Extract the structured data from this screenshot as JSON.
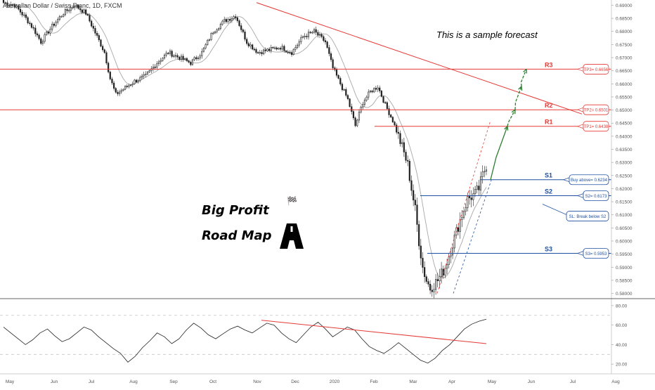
{
  "symbol_title": "Australian Dollar / Swiss Franc, 1D, FXCM",
  "headline": "This is a sample forecast",
  "brand": {
    "line1": "Big Profit",
    "line2": "Road Map"
  },
  "colors": {
    "up": "#26a69a",
    "down": "#ef5350",
    "candle": "#222222",
    "resistance": "#e53935",
    "support": "#1e4fa0",
    "forecast": "#2e7d32",
    "ma": "#a8a8a8",
    "rsi": "#222222",
    "axis": "#555555"
  },
  "chart_data": {
    "type": "candlestick",
    "ylim": [
      0.578,
      0.692
    ],
    "yticks": [
      "0.69000",
      "0.68500",
      "0.68000",
      "0.67500",
      "0.67000",
      "0.66500",
      "0.66000",
      "0.65500",
      "0.65000",
      "0.64500",
      "0.64000",
      "0.63500",
      "0.63000",
      "0.62500",
      "0.62000",
      "0.61500",
      "0.61000",
      "0.60500",
      "0.60000",
      "0.59500",
      "0.59000",
      "0.58500",
      "0.58000"
    ],
    "xticks": [
      "May",
      "Jun",
      "Jul",
      "Aug",
      "Sep",
      "Oct",
      "Nov",
      "Dec",
      "2020",
      "Feb",
      "Mar",
      "Apr",
      "May",
      "Jun",
      "Jul",
      "Aug"
    ],
    "price_path": [
      [
        0,
        0.691
      ],
      [
        6,
        0.69
      ],
      [
        12,
        0.685
      ],
      [
        16,
        0.681
      ],
      [
        20,
        0.676
      ],
      [
        26,
        0.682
      ],
      [
        32,
        0.687
      ],
      [
        38,
        0.69
      ],
      [
        44,
        0.687
      ],
      [
        50,
        0.678
      ],
      [
        54,
        0.672
      ],
      [
        57,
        0.662
      ],
      [
        60,
        0.656
      ],
      [
        64,
        0.658
      ],
      [
        70,
        0.661
      ],
      [
        76,
        0.663
      ],
      [
        82,
        0.668
      ],
      [
        88,
        0.672
      ],
      [
        94,
        0.67
      ],
      [
        100,
        0.668
      ],
      [
        106,
        0.672
      ],
      [
        112,
        0.68
      ],
      [
        118,
        0.684
      ],
      [
        124,
        0.686
      ],
      [
        130,
        0.676
      ],
      [
        136,
        0.672
      ],
      [
        142,
        0.673
      ],
      [
        148,
        0.674
      ],
      [
        154,
        0.672
      ],
      [
        160,
        0.678
      ],
      [
        166,
        0.68
      ],
      [
        172,
        0.676
      ],
      [
        176,
        0.666
      ],
      [
        180,
        0.66
      ],
      [
        184,
        0.654
      ],
      [
        188,
        0.644
      ],
      [
        192,
        0.653
      ],
      [
        196,
        0.657
      ],
      [
        200,
        0.659
      ],
      [
        204,
        0.652
      ],
      [
        208,
        0.646
      ],
      [
        212,
        0.638
      ],
      [
        216,
        0.629
      ],
      [
        218,
        0.62
      ],
      [
        220,
        0.612
      ],
      [
        222,
        0.6
      ],
      [
        224,
        0.59
      ],
      [
        226,
        0.585
      ],
      [
        228,
        0.582
      ],
      [
        232,
        0.585
      ],
      [
        236,
        0.59
      ],
      [
        240,
        0.599
      ],
      [
        244,
        0.608
      ],
      [
        248,
        0.616
      ],
      [
        252,
        0.618
      ],
      [
        254,
        0.62
      ],
      [
        256,
        0.625
      ],
      [
        258,
        0.629
      ]
    ],
    "levels": [
      {
        "name": "R3",
        "price": 0.6656,
        "label": "TP3= 0.6656"
      },
      {
        "name": "R2",
        "price": 0.6501,
        "label": "TP2= 0.6501"
      },
      {
        "name": "R1",
        "price": 0.6438,
        "label": "TP1= 0.6438"
      },
      {
        "name": "S1",
        "price": 0.6234,
        "label": "Buy above= 0.6234"
      },
      {
        "name": "S2",
        "price": 0.6173,
        "label": "S2= 0.6173"
      },
      {
        "name": "S3",
        "price": 0.5953,
        "label": "S3= 0.5953"
      }
    ],
    "sl_note": "SL: Break below S2",
    "trendline": {
      "from": [
        0.691,
        0
      ],
      "to": [
        0.65,
        268
      ]
    },
    "forecast_path": [
      0.6234,
      0.6438,
      0.6501,
      0.659,
      0.6656
    ],
    "rsi": {
      "ylim": [
        10,
        85
      ],
      "yticks": [
        "80.00",
        "60.00",
        "40.00",
        "20.00"
      ],
      "levels": [
        70,
        30
      ],
      "values": [
        58,
        52,
        46,
        40,
        45,
        52,
        56,
        49,
        43,
        46,
        52,
        58,
        55,
        48,
        42,
        36,
        31,
        22,
        28,
        37,
        44,
        52,
        48,
        41,
        46,
        55,
        62,
        57,
        50,
        46,
        51,
        56,
        59,
        55,
        52,
        57,
        62,
        60,
        52,
        46,
        42,
        50,
        58,
        63,
        56,
        48,
        53,
        58,
        55,
        46,
        38,
        34,
        31,
        36,
        42,
        36,
        30,
        24,
        21,
        26,
        34,
        40,
        48,
        56,
        61,
        64,
        66
      ],
      "divergence": {
        "from": [
          67,
          0.4
        ],
        "to": [
          40,
          1.0
        ]
      }
    }
  }
}
